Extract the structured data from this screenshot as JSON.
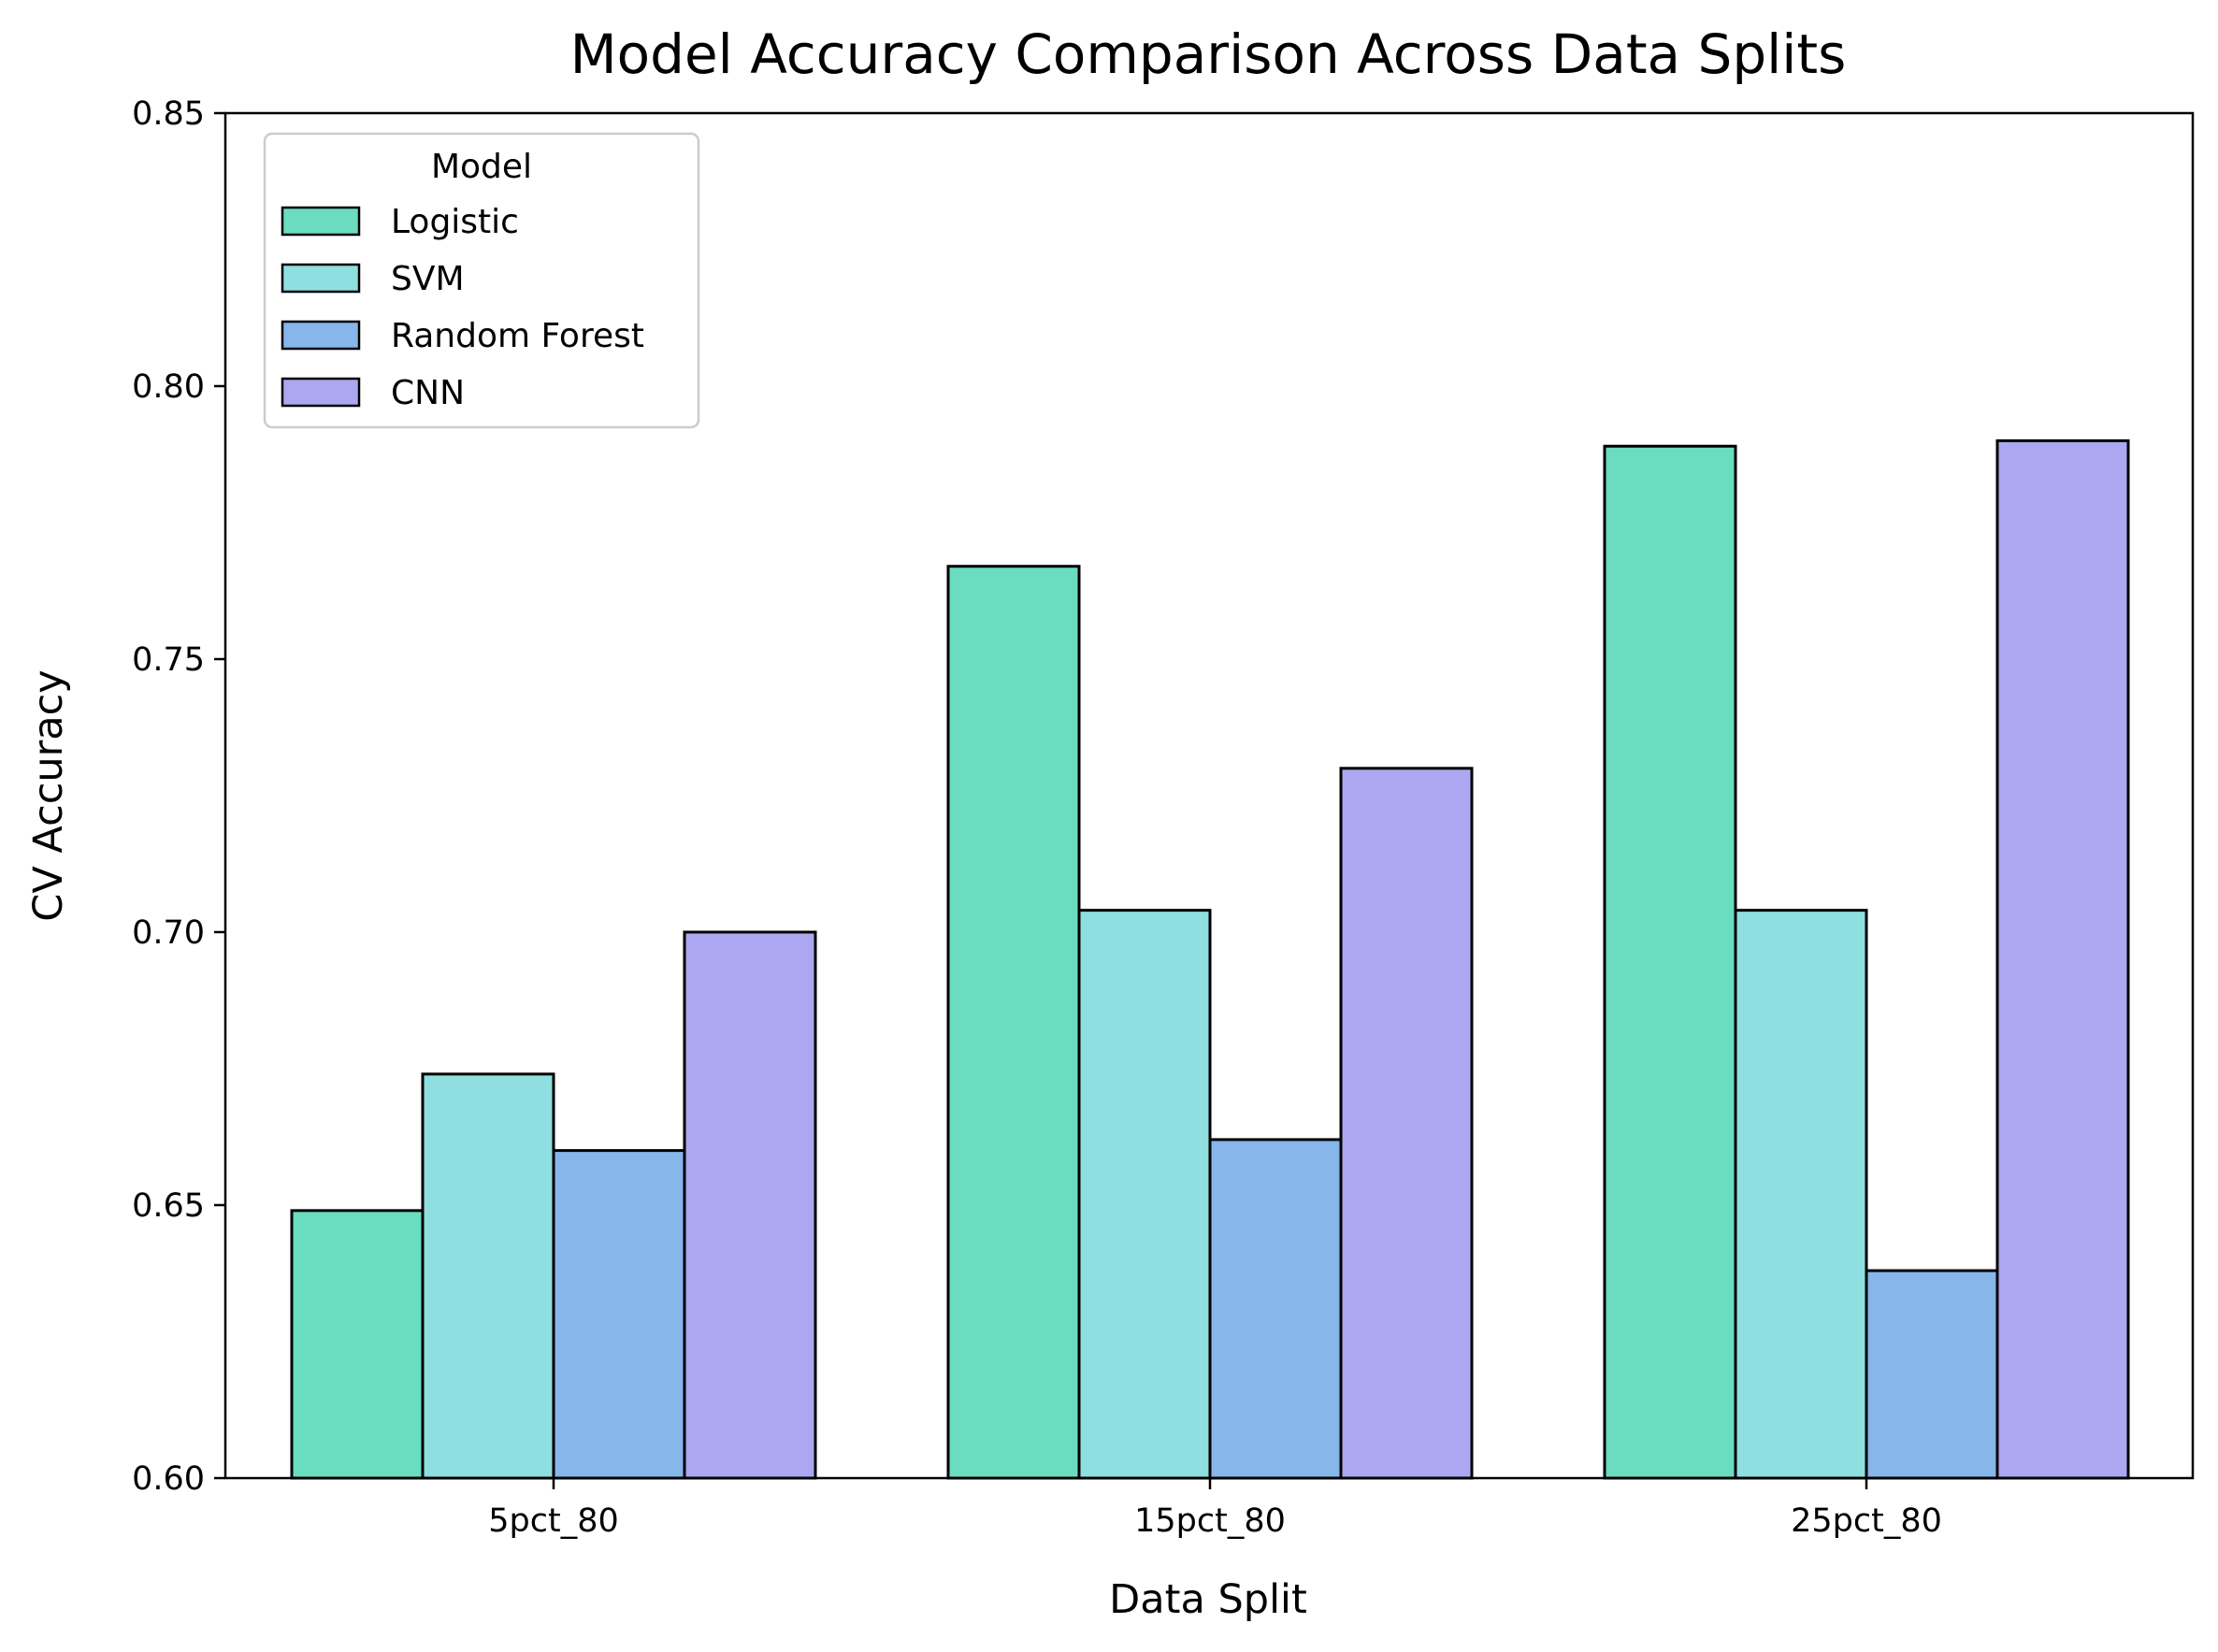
{
  "chart_data": {
    "type": "bar",
    "title": "Model Accuracy Comparison Across Data Splits",
    "xlabel": "Data Split",
    "ylabel": "CV Accuracy",
    "categories": [
      "5pct_80",
      "15pct_80",
      "25pct_80"
    ],
    "ylim": [
      0.6,
      0.85
    ],
    "yticks": [
      "0.60",
      "0.65",
      "0.70",
      "0.75",
      "0.80",
      "0.85"
    ],
    "grid": false,
    "legend": {
      "title": "Model",
      "placement": "top-left"
    },
    "series": [
      {
        "name": "Logistic",
        "color": "#6adcc0",
        "values": [
          0.649,
          0.767,
          0.789
        ]
      },
      {
        "name": "SVM",
        "color": "#8fdee0",
        "values": [
          0.674,
          0.704,
          0.704
        ]
      },
      {
        "name": "Random Forest",
        "color": "#86b6ea",
        "values": [
          0.66,
          0.662,
          0.638
        ]
      },
      {
        "name": "CNN",
        "color": "#aca7f0",
        "values": [
          0.7,
          0.73,
          0.79
        ]
      }
    ]
  }
}
